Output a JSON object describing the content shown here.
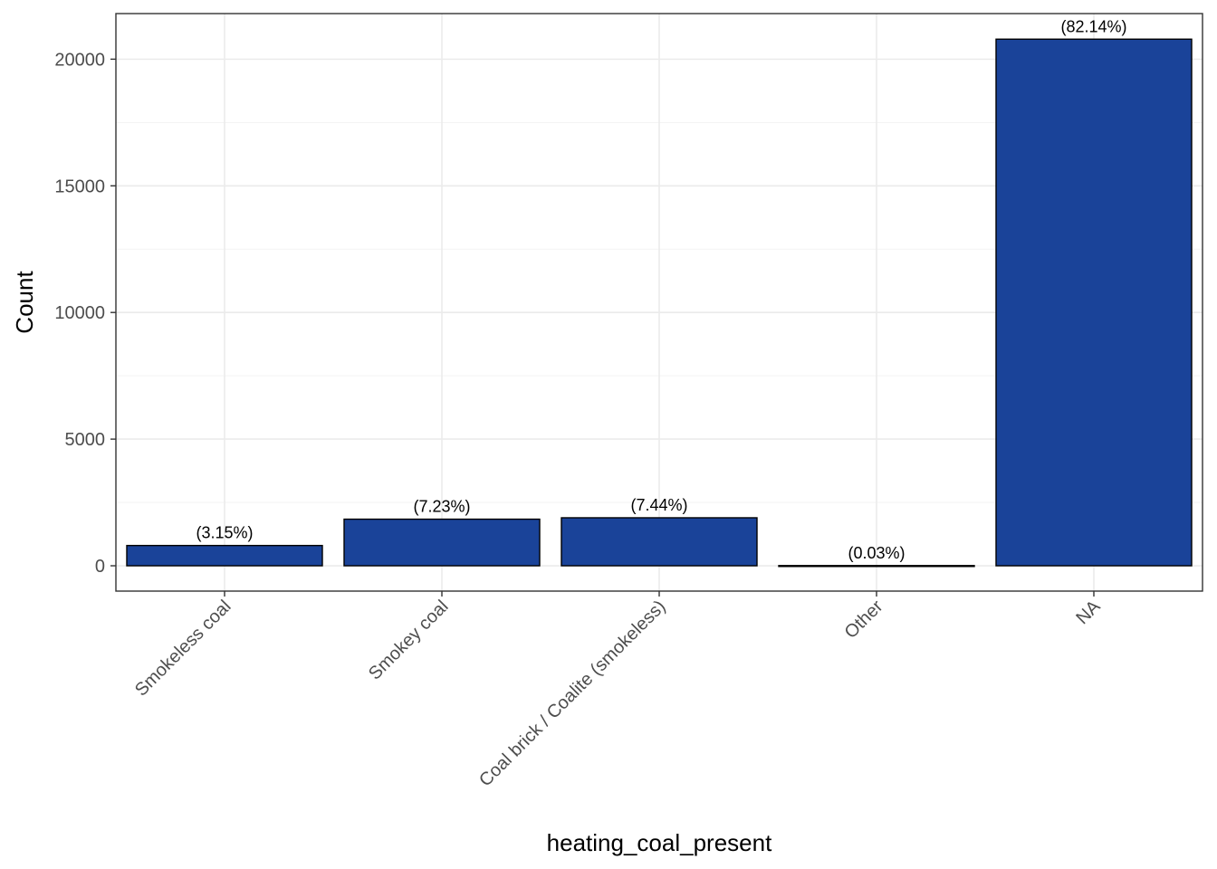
{
  "chart_data": {
    "type": "bar",
    "title": "",
    "xlabel": "heating_coal_present",
    "ylabel": "Count",
    "categories": [
      "Smokeless coal",
      "Smokey coal",
      "Coal brick / Coalite (smokeless)",
      "Other",
      "NA"
    ],
    "values": [
      800,
      1840,
      1895,
      8,
      20790
    ],
    "labels": [
      "(3.15%)",
      "(7.23%)",
      "(7.44%)",
      "(0.03%)",
      "(82.14%)"
    ],
    "ylim": [
      -1000,
      21800
    ],
    "yticks": [
      0,
      5000,
      10000,
      15000,
      20000
    ],
    "ytick_labels": [
      "0",
      "5000",
      "10000",
      "15000",
      "20000"
    ],
    "grid": true,
    "bar_color": "#1a4399",
    "bar_edge_color": "#000000"
  }
}
